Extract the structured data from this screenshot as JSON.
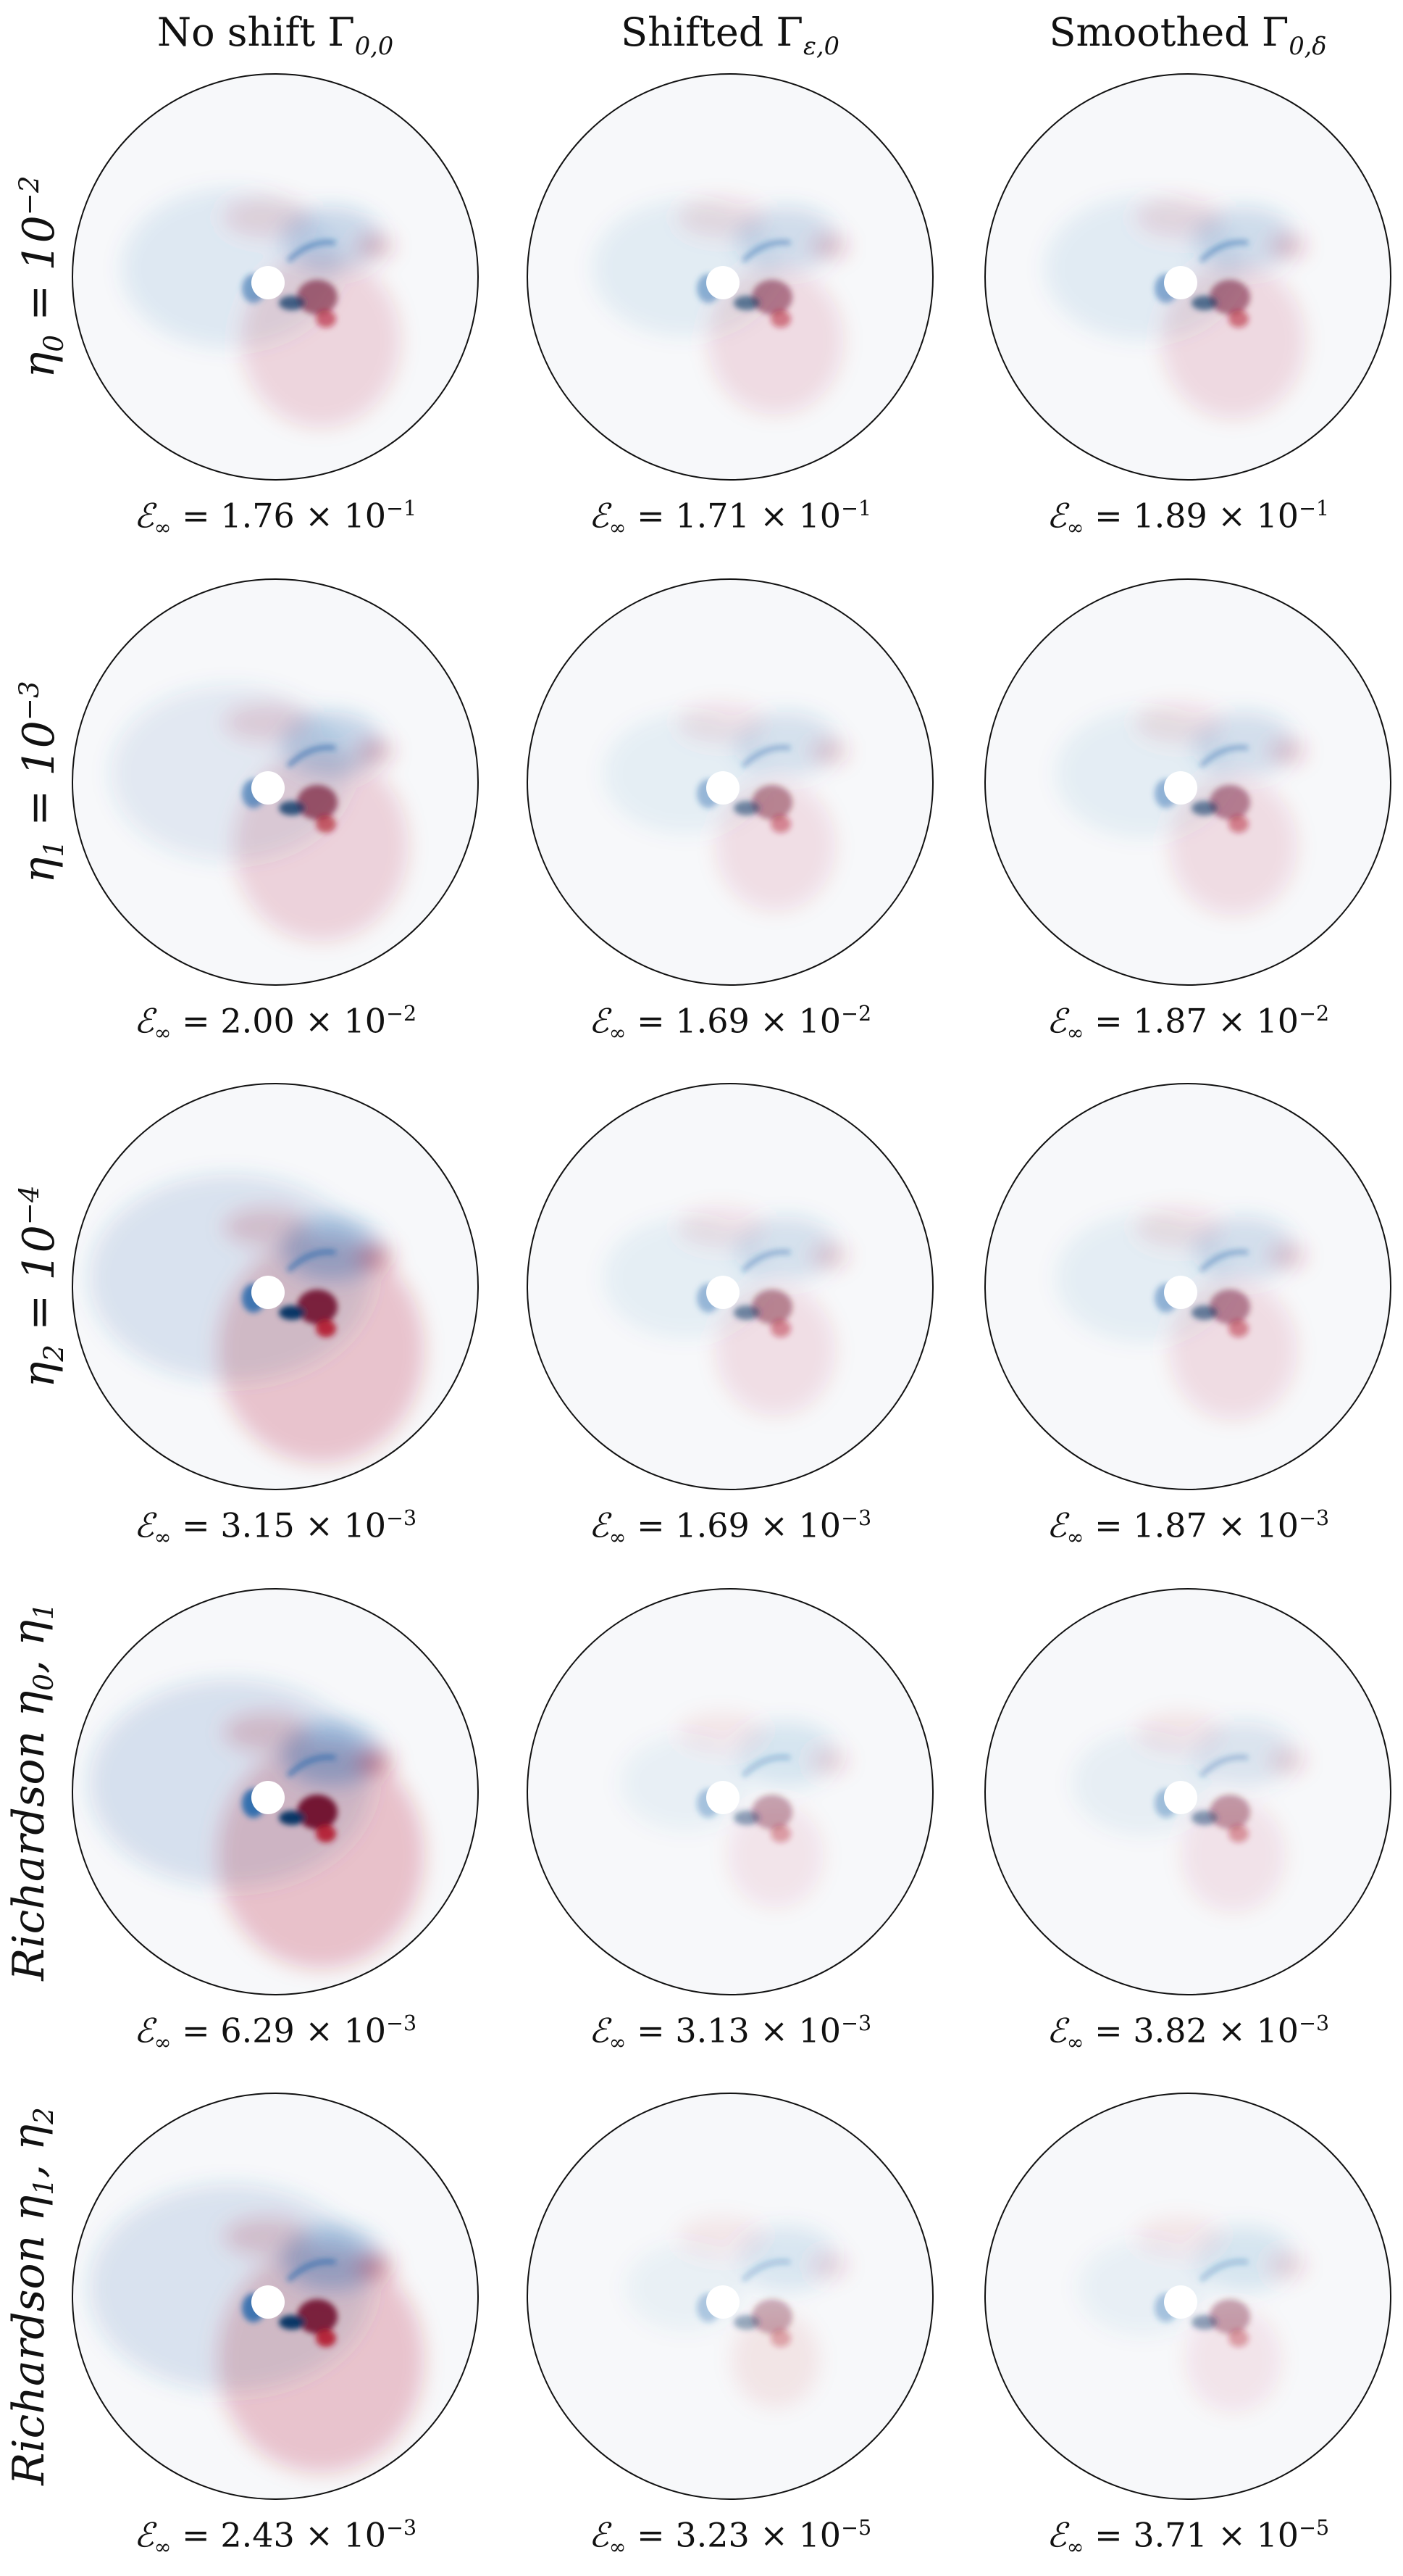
{
  "columns": [
    {
      "prefix": "No shift ",
      "symbol": "Γ",
      "sub": "0,0"
    },
    {
      "prefix": "Shifted ",
      "symbol": "Γ",
      "sub": "ε,0"
    },
    {
      "prefix": "Smoothed ",
      "symbol": "Γ",
      "sub": "0,δ"
    }
  ],
  "rows": [
    {
      "label_html": "η<sub>0</sub> = 10<sup>−2</sup>",
      "errors": [
        {
          "mant": "1.76",
          "exp": "−1"
        },
        {
          "mant": "1.71",
          "exp": "−1"
        },
        {
          "mant": "1.89",
          "exp": "−1"
        }
      ]
    },
    {
      "label_html": "η<sub>1</sub> = 10<sup>−3</sup>",
      "errors": [
        {
          "mant": "2.00",
          "exp": "−2"
        },
        {
          "mant": "1.69",
          "exp": "−2"
        },
        {
          "mant": "1.87",
          "exp": "−2"
        }
      ]
    },
    {
      "label_html": "η<sub>2</sub> = 10<sup>−4</sup>",
      "errors": [
        {
          "mant": "3.15",
          "exp": "−3"
        },
        {
          "mant": "1.69",
          "exp": "−3"
        },
        {
          "mant": "1.87",
          "exp": "−3"
        }
      ]
    },
    {
      "label_html": "Richardson η<sub>0</sub>, η<sub>1</sub>",
      "errors": [
        {
          "mant": "6.29",
          "exp": "−3"
        },
        {
          "mant": "3.13",
          "exp": "−3"
        },
        {
          "mant": "3.82",
          "exp": "−3"
        }
      ]
    },
    {
      "label_html": "Richardson η<sub>1</sub>, η<sub>2</sub>",
      "errors": [
        {
          "mant": "2.43",
          "exp": "−3"
        },
        {
          "mant": "3.23",
          "exp": "−5"
        },
        {
          "mant": "3.71",
          "exp": "−5"
        }
      ]
    }
  ],
  "error_symbol": "ℰ",
  "error_subscript": "∞",
  "colors": {
    "red": "#b2182b",
    "blue": "#2166ac",
    "dark_red": "#67001f",
    "dark_blue": "#053061",
    "circle": "#111111"
  }
}
